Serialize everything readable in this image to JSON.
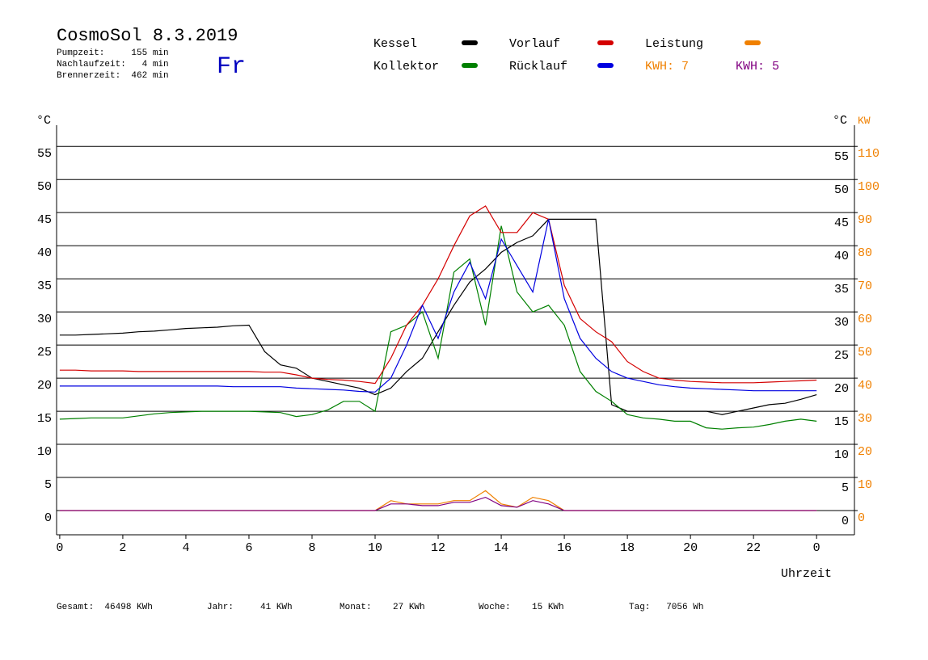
{
  "chart_data": {
    "type": "line",
    "title": "CosmoSol 8.3.2019",
    "info": [
      "Pumpzeit:     155 min",
      "Nachlaufzeit:   4 min",
      "Brennerzeit:  462 min"
    ],
    "weekday": "Fr",
    "kwh_labels": [
      {
        "text": "KWH: 7",
        "color": "#f08000"
      },
      {
        "text": "KWH: 5",
        "color": "#800080"
      }
    ],
    "y_unit": "°C",
    "y2_unit": "KW",
    "xlabel": "Uhrzeit",
    "footer": [
      "Gesamt:  46498 KWh",
      "Jahr:     41 KWh",
      "Monat:    27 KWh",
      "Woche:    15 KWh",
      "Tag:   7056 Wh"
    ],
    "xlim": [
      -0.1,
      25.2
    ],
    "xticks": [
      0,
      2,
      4,
      6,
      8,
      10,
      12,
      14,
      16,
      18,
      20,
      22,
      {
        "value": 24,
        "label": "0"
      }
    ],
    "ylim": [
      -3.66,
      58.2
    ],
    "yticks": [
      0,
      5,
      10,
      15,
      20,
      25,
      30,
      35,
      40,
      45,
      50,
      55
    ],
    "y2lim": [
      -7.32,
      116.4
    ],
    "y2ticks": [
      0,
      10,
      20,
      30,
      40,
      50,
      60,
      70,
      80,
      90,
      100,
      110
    ],
    "grid": true,
    "x": [
      0,
      0.5,
      1,
      1.5,
      2,
      2.5,
      3,
      3.5,
      4,
      4.5,
      5,
      5.5,
      6,
      6.5,
      7,
      7.5,
      8,
      8.5,
      9,
      9.5,
      10,
      10.5,
      11,
      11.5,
      12,
      12.5,
      13,
      13.5,
      14,
      14.5,
      15,
      15.5,
      16,
      16.5,
      17,
      17.5,
      18,
      18.5,
      19,
      19.5,
      20,
      20.5,
      21,
      21.5,
      22,
      22.5,
      23,
      23.5,
      24
    ],
    "series": [
      {
        "name": "Kessel",
        "color": "#000000",
        "values": [
          26.5,
          26.5,
          26.6,
          26.7,
          26.8,
          27,
          27.1,
          27.3,
          27.5,
          27.6,
          27.7,
          27.9,
          28,
          24,
          22,
          21.5,
          20,
          19.5,
          19,
          18.5,
          17.5,
          18.5,
          21,
          23,
          27,
          31,
          34.5,
          36.5,
          39,
          40.5,
          41.5,
          44,
          44,
          44,
          44,
          16,
          15,
          15,
          15,
          15,
          15,
          15,
          14.5,
          15,
          15.5,
          16,
          16.2,
          16.8,
          17.5
        ]
      },
      {
        "name": "Kollektor",
        "color": "#008000",
        "values": [
          13.8,
          13.9,
          14,
          14,
          14,
          14.3,
          14.6,
          14.8,
          14.9,
          15,
          15,
          15,
          15,
          14.9,
          14.8,
          14.2,
          14.5,
          15.2,
          16.5,
          16.5,
          15,
          27,
          28,
          30,
          23,
          36,
          38,
          28,
          43,
          33,
          30,
          31,
          28,
          21,
          18,
          16.5,
          14.5,
          14,
          13.8,
          13.5,
          13.5,
          12.5,
          12.3,
          12.5,
          12.6,
          13,
          13.5,
          13.8,
          13.5
        ]
      },
      {
        "name": "Vorlauf",
        "color": "#d40000",
        "values": [
          21.2,
          21.2,
          21.1,
          21.1,
          21.1,
          21,
          21,
          21,
          21,
          21,
          21,
          21,
          21,
          20.9,
          20.9,
          20.5,
          20,
          19.8,
          19.7,
          19.5,
          19.2,
          23,
          28,
          31,
          35,
          40,
          44.5,
          46,
          42,
          42,
          45,
          44,
          34,
          29,
          27,
          25.5,
          22.5,
          21,
          20,
          19.7,
          19.5,
          19.4,
          19.3,
          19.3,
          19.3,
          19.4,
          19.5,
          19.6,
          19.7
        ]
      },
      {
        "name": "Rücklauf",
        "color": "#0000e0",
        "values": [
          18.8,
          18.8,
          18.8,
          18.8,
          18.8,
          18.8,
          18.8,
          18.8,
          18.8,
          18.8,
          18.8,
          18.7,
          18.7,
          18.7,
          18.7,
          18.5,
          18.4,
          18.3,
          18.2,
          18,
          17.9,
          20,
          25,
          31,
          26,
          33,
          37.5,
          32,
          41,
          37,
          33,
          44,
          32,
          26,
          23,
          21,
          20,
          19.5,
          19,
          18.7,
          18.5,
          18.4,
          18.3,
          18.2,
          18.1,
          18.1,
          18.1,
          18.1,
          18.1
        ]
      },
      {
        "name": "Leistung",
        "color": "#f08000",
        "axis": "y2",
        "values": [
          0,
          0,
          0,
          0,
          0,
          0,
          0,
          0,
          0,
          0,
          0,
          0,
          0,
          0,
          0,
          0,
          0,
          0,
          0,
          0,
          0,
          3,
          2,
          2,
          2,
          3,
          3,
          6,
          2,
          1,
          4,
          3,
          0,
          0,
          0,
          0,
          0,
          0,
          0,
          0,
          0,
          0,
          0,
          0,
          0,
          0,
          0,
          0,
          0
        ]
      },
      {
        "color": "#800080",
        "axis": "y2",
        "values": [
          0,
          0,
          0,
          0,
          0,
          0,
          0,
          0,
          0,
          0,
          0,
          0,
          0,
          0,
          0,
          0,
          0,
          0,
          0,
          0,
          0,
          2,
          2,
          1.5,
          1.5,
          2.5,
          2.5,
          4,
          1.5,
          1,
          3,
          2,
          0,
          0,
          0,
          0,
          0,
          0,
          0,
          0,
          0,
          0,
          0,
          0,
          0,
          0,
          0,
          0,
          0
        ]
      }
    ]
  }
}
